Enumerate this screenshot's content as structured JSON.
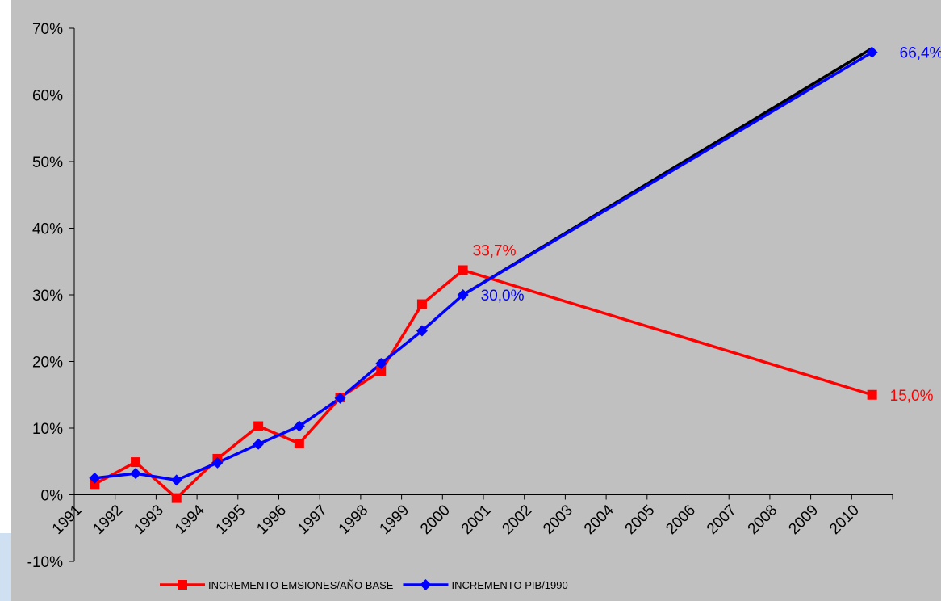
{
  "chart_data": {
    "type": "line",
    "title": "",
    "xlabel": "",
    "ylabel": "",
    "x": [
      "1991",
      "1992",
      "1993",
      "1994",
      "1995",
      "1996",
      "1997",
      "1998",
      "1999",
      "2000",
      "2001",
      "2002",
      "2003",
      "2004",
      "2005",
      "2006",
      "2007",
      "2008",
      "2009",
      "2010"
    ],
    "ylim": [
      -10,
      70
    ],
    "yticks": [
      -10,
      0,
      10,
      20,
      30,
      40,
      50,
      60,
      70
    ],
    "ytick_labels": [
      "-10%",
      "0%",
      "10%",
      "20%",
      "30%",
      "40%",
      "50%",
      "60%",
      "70%"
    ],
    "grid": false,
    "legend_position": "bottom",
    "background_color": "#c0c0c0",
    "series": [
      {
        "name": "INCREMENTO EMSIONES/AÑO BASE",
        "color": "#ff0000",
        "marker": "square",
        "points": [
          {
            "x": "1991",
            "y": 1.6
          },
          {
            "x": "1992",
            "y": 4.9
          },
          {
            "x": "1993",
            "y": -0.5
          },
          {
            "x": "1994",
            "y": 5.4
          },
          {
            "x": "1995",
            "y": 10.3
          },
          {
            "x": "1996",
            "y": 7.7
          },
          {
            "x": "1997",
            "y": 14.6
          },
          {
            "x": "1998",
            "y": 18.6
          },
          {
            "x": "1999",
            "y": 28.6
          },
          {
            "x": "2000",
            "y": 33.7
          },
          {
            "x": "2010",
            "y": 15.0
          }
        ]
      },
      {
        "name": "INCREMENTO PIB/1990",
        "color": "#0000ff",
        "marker": "diamond",
        "points": [
          {
            "x": "1991",
            "y": 2.5
          },
          {
            "x": "1992",
            "y": 3.2
          },
          {
            "x": "1993",
            "y": 2.2
          },
          {
            "x": "1994",
            "y": 4.8
          },
          {
            "x": "1995",
            "y": 7.6
          },
          {
            "x": "1996",
            "y": 10.3
          },
          {
            "x": "1997",
            "y": 14.5
          },
          {
            "x": "1998",
            "y": 19.7
          },
          {
            "x": "1999",
            "y": 24.6
          },
          {
            "x": "2000",
            "y": 30.0
          },
          {
            "x": "2010",
            "y": 66.4
          }
        ]
      }
    ],
    "projection_line": {
      "color": "#000000",
      "points": [
        {
          "x": "2000",
          "y": 30.0
        },
        {
          "x": "2010",
          "y": 67.0
        }
      ]
    },
    "data_labels": [
      {
        "text": "33,7%",
        "series": 0,
        "x": "2000",
        "y": 33.7,
        "color": "#ff0000"
      },
      {
        "text": "30,0%",
        "series": 1,
        "x": "2000",
        "y": 30.0,
        "color": "#0000ff"
      },
      {
        "text": "66,4%",
        "series": 1,
        "x": "2010",
        "y": 66.4,
        "color": "#0000ff"
      },
      {
        "text": "15,0%",
        "series": 0,
        "x": "2010",
        "y": 15.0,
        "color": "#ff0000"
      }
    ]
  }
}
